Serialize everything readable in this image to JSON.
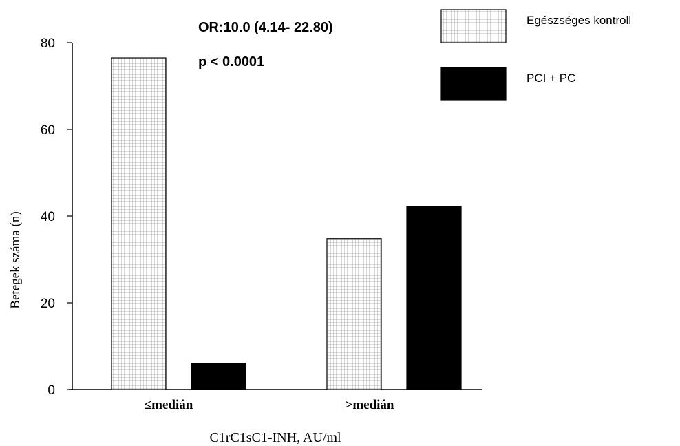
{
  "chart_data": {
    "type": "bar",
    "categories": [
      "≤medián",
      ">medián"
    ],
    "series": [
      {
        "name": "Egészséges kontroll",
        "values": [
          76.5,
          34.8
        ],
        "color": "#e6e6e6",
        "pattern": "grid"
      },
      {
        "name": "PCI + PC",
        "values": [
          6,
          42.2
        ],
        "color": "#000000",
        "pattern": "solid"
      }
    ],
    "xlabel": "C1rC1sC1-INH, AU/ml",
    "ylabel": "Betegek száma (n)",
    "ylim": [
      0,
      80
    ],
    "yticks": [
      0,
      20,
      40,
      60,
      80
    ],
    "legend_position": "top-right",
    "annotations": [
      "OR:10.0 (4.14- 22.80)",
      "p < 0.0001"
    ],
    "grid": false
  }
}
